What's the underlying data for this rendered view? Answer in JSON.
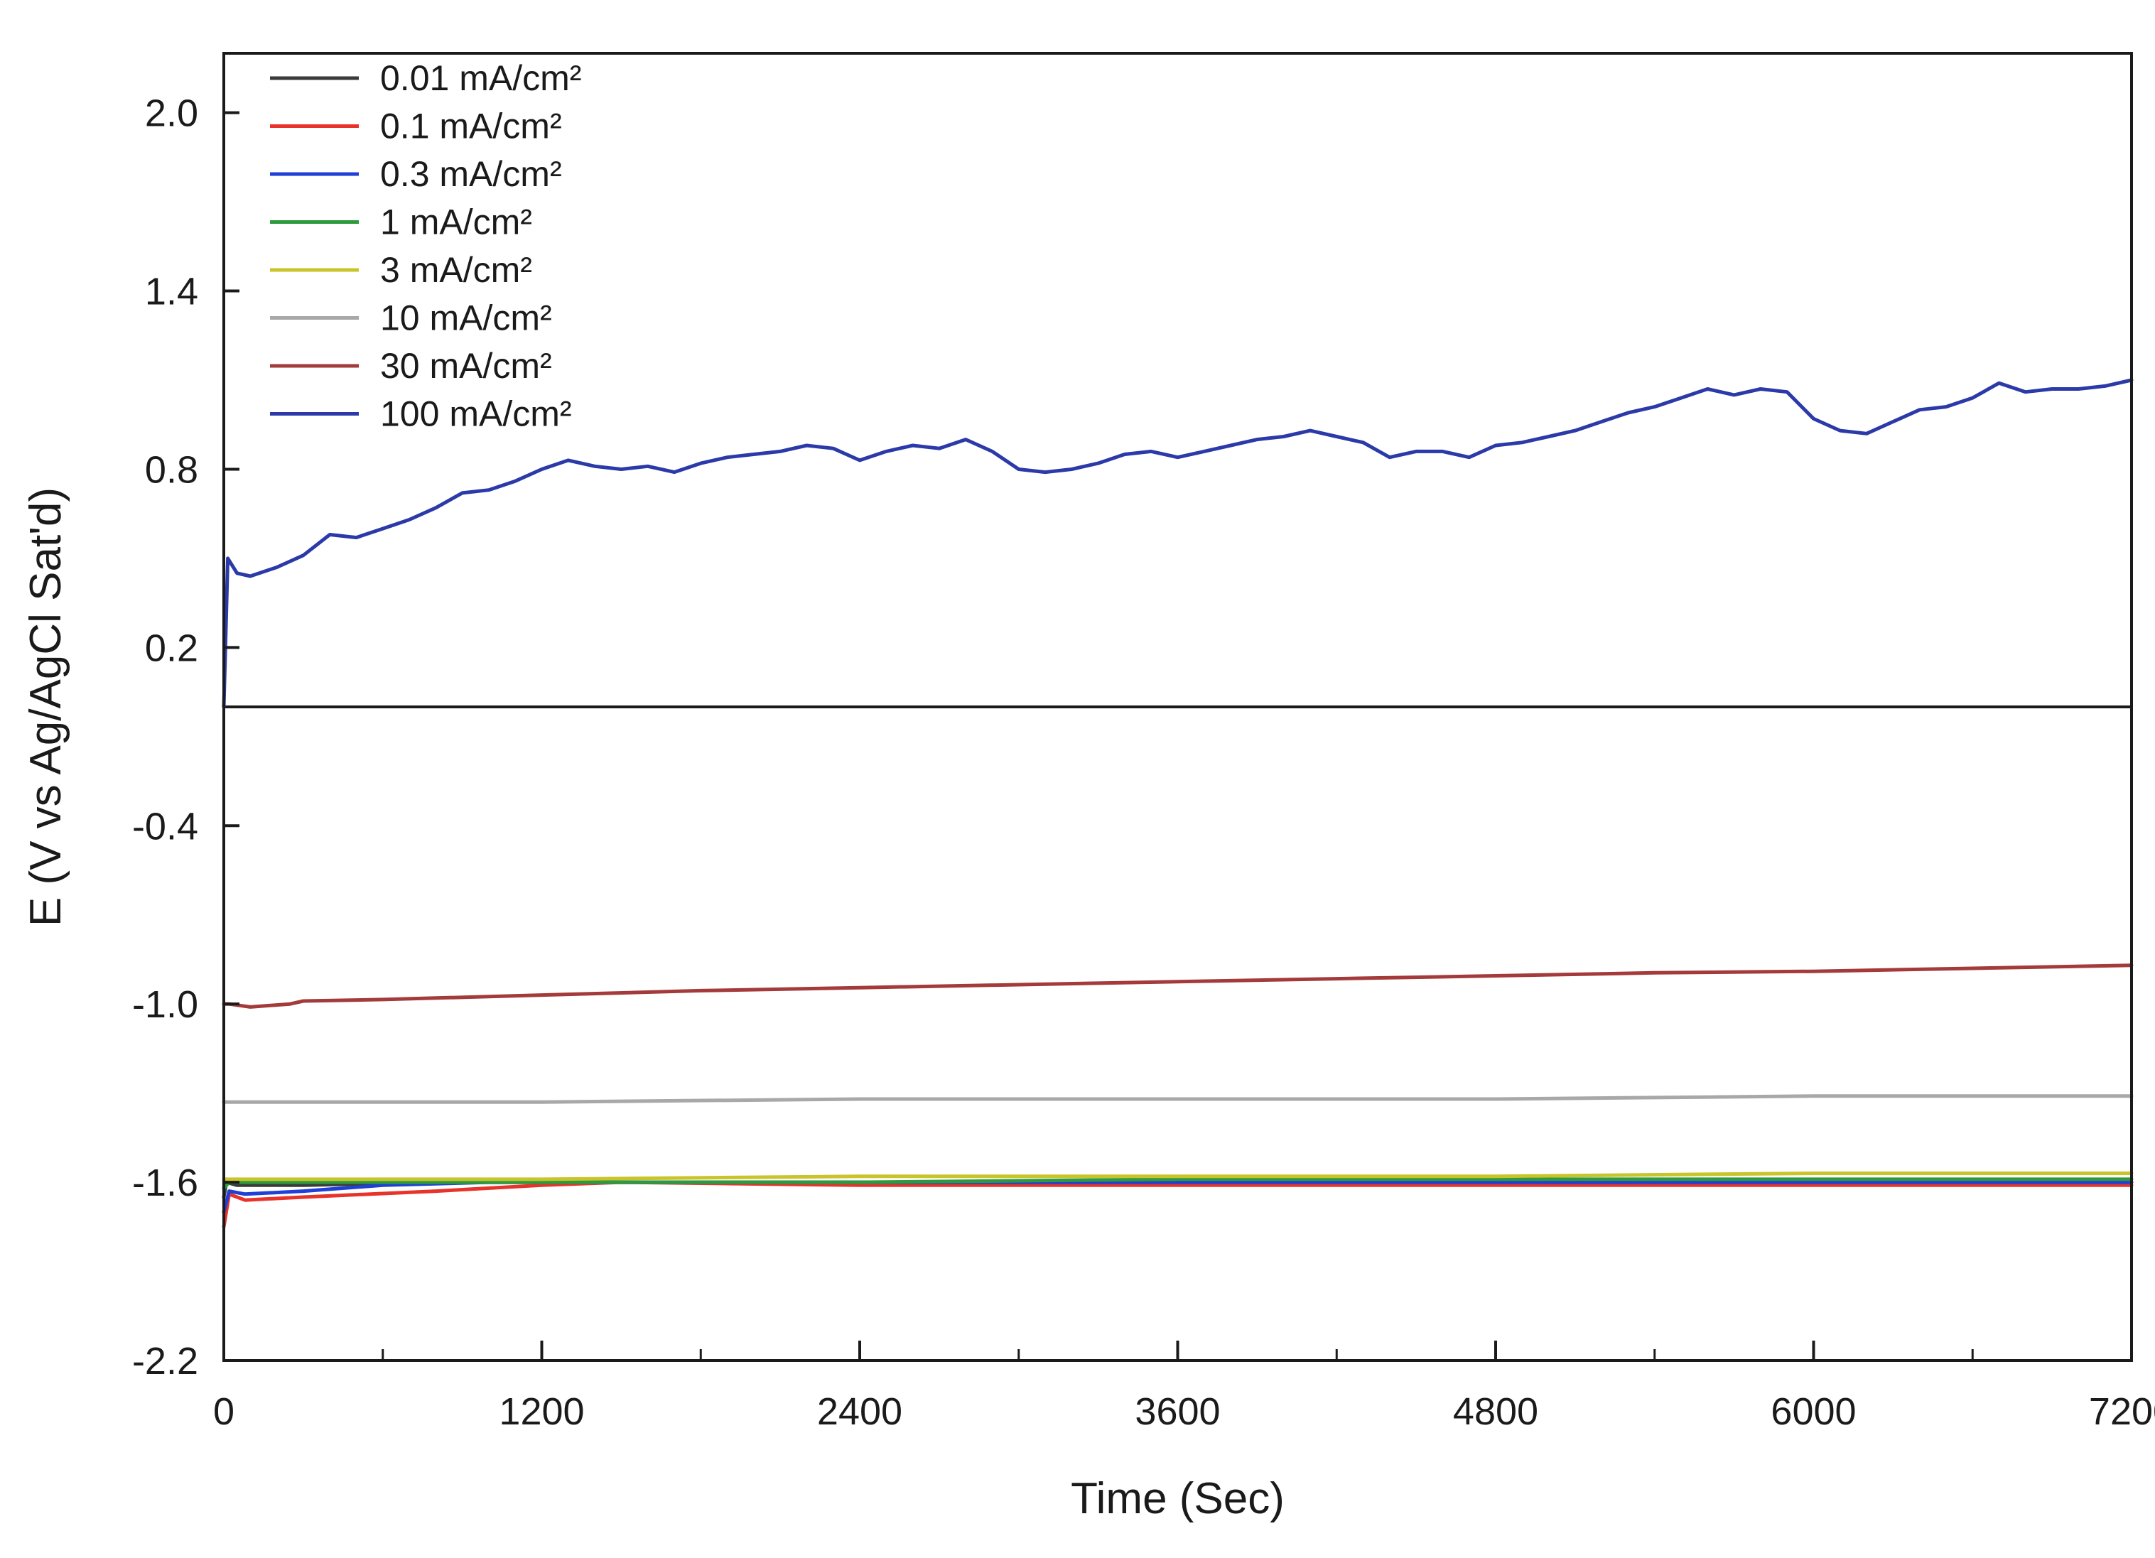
{
  "chart_data": {
    "type": "line",
    "title": "",
    "xlabel": "Time (Sec)",
    "ylabel": "E (V vs Ag/AgCl Sat'd)",
    "xlim": [
      0,
      7200
    ],
    "ylim": [
      -2.2,
      2.2
    ],
    "xticks": [
      0,
      1200,
      2400,
      3600,
      4800,
      6000,
      7200
    ],
    "xtick_labels": [
      "0",
      "1200",
      "2400",
      "3600",
      "4800",
      "6000",
      "7200"
    ],
    "x_minor_step": 600,
    "yticks": [
      2.0,
      1.4,
      0.8,
      0.2,
      -0.4,
      -1.0,
      -1.6,
      -2.2
    ],
    "ytick_labels": [
      "2.0",
      "1.4",
      "0.8",
      "0.2",
      "-0.4",
      "-1.0",
      "-1.6",
      "-2.2"
    ],
    "reference_line_y": 0.0,
    "grid": false,
    "legend_position": "top-left",
    "series": [
      {
        "name": "0.01 mA/cm²",
        "color": "#3a3a3a",
        "x": [
          0,
          10,
          50,
          300,
          800,
          1500,
          2400,
          3600,
          4800,
          6000,
          7200
        ],
        "y": [
          -1.65,
          -1.6,
          -1.61,
          -1.61,
          -1.6,
          -1.6,
          -1.6,
          -1.6,
          -1.6,
          -1.6,
          -1.6
        ]
      },
      {
        "name": "0.1 mA/cm²",
        "color": "#e8332b",
        "x": [
          0,
          20,
          80,
          300,
          800,
          1200,
          1500,
          2400,
          3600,
          4800,
          6000,
          7200
        ],
        "y": [
          -1.75,
          -1.64,
          -1.66,
          -1.65,
          -1.63,
          -1.61,
          -1.6,
          -1.61,
          -1.61,
          -1.61,
          -1.61,
          -1.61
        ]
      },
      {
        "name": "0.3 mA/cm²",
        "color": "#1f3fd6",
        "x": [
          0,
          20,
          80,
          300,
          600,
          1000,
          1500,
          2400,
          3600,
          4800,
          6000,
          7200
        ],
        "y": [
          -1.7,
          -1.63,
          -1.64,
          -1.63,
          -1.61,
          -1.6,
          -1.6,
          -1.6,
          -1.6,
          -1.6,
          -1.6,
          -1.6
        ]
      },
      {
        "name": "1 mA/cm²",
        "color": "#2e9a3e",
        "x": [
          0,
          20,
          300,
          1200,
          2400,
          3600,
          4800,
          6000,
          7200
        ],
        "y": [
          -1.62,
          -1.6,
          -1.6,
          -1.6,
          -1.6,
          -1.59,
          -1.59,
          -1.59,
          -1.59
        ]
      },
      {
        "name": "3 mA/cm²",
        "color": "#c9c42a",
        "x": [
          0,
          20,
          300,
          1200,
          2400,
          3600,
          4800,
          6000,
          7200
        ],
        "y": [
          -1.59,
          -1.59,
          -1.59,
          -1.59,
          -1.58,
          -1.58,
          -1.58,
          -1.57,
          -1.57
        ]
      },
      {
        "name": "10 mA/cm²",
        "color": "#a8a8a8",
        "x": [
          0,
          20,
          600,
          1200,
          2400,
          3600,
          4800,
          6000,
          7200
        ],
        "y": [
          -1.33,
          -1.33,
          -1.33,
          -1.33,
          -1.32,
          -1.32,
          -1.32,
          -1.31,
          -1.31
        ]
      },
      {
        "name": "30 mA/cm²",
        "color": "#a43a3a",
        "x": [
          0,
          20,
          100,
          250,
          300,
          600,
          1200,
          1800,
          2400,
          3000,
          3600,
          4200,
          4800,
          5400,
          6000,
          6600,
          7200
        ],
        "y": [
          -1.0,
          -1.0,
          -1.01,
          -1.0,
          -0.99,
          -0.985,
          -0.97,
          -0.955,
          -0.945,
          -0.935,
          -0.925,
          -0.915,
          -0.905,
          -0.895,
          -0.89,
          -0.88,
          -0.87
        ]
      },
      {
        "name": "100 mA/cm²",
        "color": "#2b3aa8",
        "x": [
          0,
          15,
          50,
          100,
          200,
          300,
          400,
          500,
          600,
          700,
          800,
          900,
          1000,
          1100,
          1200,
          1300,
          1400,
          1500,
          1600,
          1700,
          1800,
          1900,
          2000,
          2100,
          2200,
          2300,
          2400,
          2500,
          2600,
          2700,
          2800,
          2900,
          3000,
          3100,
          3200,
          3300,
          3400,
          3500,
          3600,
          3700,
          3800,
          3900,
          4000,
          4100,
          4200,
          4300,
          4400,
          4500,
          4600,
          4700,
          4800,
          4900,
          5000,
          5100,
          5200,
          5300,
          5400,
          5500,
          5600,
          5700,
          5800,
          5900,
          6000,
          6100,
          6200,
          6300,
          6400,
          6500,
          6600,
          6700,
          6800,
          6900,
          7000,
          7100,
          7200
        ],
        "y": [
          0.0,
          0.5,
          0.45,
          0.44,
          0.47,
          0.51,
          0.58,
          0.57,
          0.6,
          0.63,
          0.67,
          0.72,
          0.73,
          0.76,
          0.8,
          0.83,
          0.81,
          0.8,
          0.81,
          0.79,
          0.82,
          0.84,
          0.85,
          0.86,
          0.88,
          0.87,
          0.83,
          0.86,
          0.88,
          0.87,
          0.9,
          0.86,
          0.8,
          0.79,
          0.8,
          0.82,
          0.85,
          0.86,
          0.84,
          0.86,
          0.88,
          0.9,
          0.91,
          0.93,
          0.91,
          0.89,
          0.84,
          0.86,
          0.86,
          0.84,
          0.88,
          0.89,
          0.91,
          0.93,
          0.96,
          0.99,
          1.01,
          1.04,
          1.07,
          1.05,
          1.07,
          1.06,
          0.97,
          0.93,
          0.92,
          0.96,
          1.0,
          1.01,
          1.04,
          1.09,
          1.06,
          1.07,
          1.07,
          1.08,
          1.1
        ]
      }
    ]
  }
}
